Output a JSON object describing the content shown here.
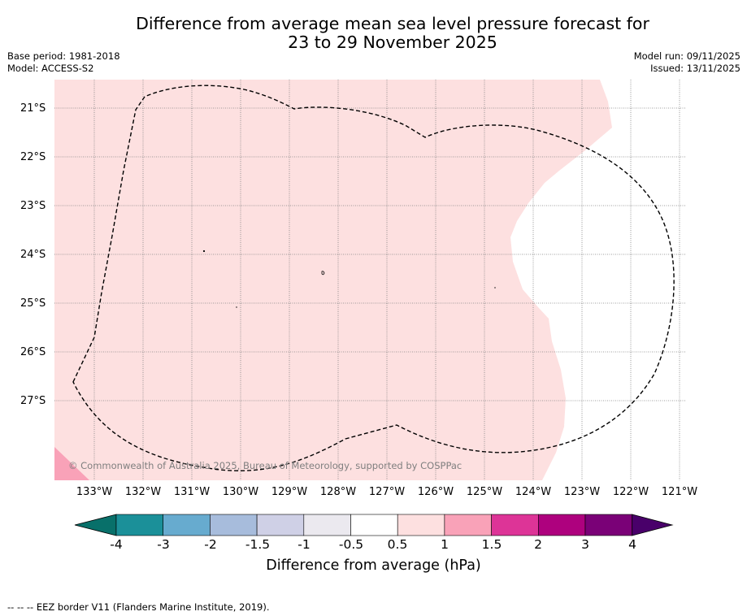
{
  "title": {
    "line1": "Difference from average mean sea level pressure forecast for",
    "line2": "23 to 29 November 2025"
  },
  "meta_left": {
    "base_period": "Base period: 1981-2018",
    "model": "Model: ACCESS-S2"
  },
  "meta_right": {
    "model_run": "Model run: 09/11/2025",
    "issued": "Issued: 13/11/2025"
  },
  "latitude_labels": [
    "21°S",
    "22°S",
    "23°S",
    "24°S",
    "25°S",
    "26°S",
    "27°S"
  ],
  "longitude_labels": [
    "133°W",
    "132°W",
    "131°W",
    "130°W",
    "129°W",
    "128°W",
    "127°W",
    "126°W",
    "125°W",
    "124°W",
    "123°W",
    "122°W",
    "121°W"
  ],
  "copyright": "© Commonwealth of Australia 2025, Bureau of Meteorology, supported by COSPPac",
  "colorbar": {
    "ticks": [
      "-4",
      "-3",
      "-2",
      "-1.5",
      "-1",
      "-0.5",
      "0.5",
      "1",
      "1.5",
      "2",
      "3",
      "4"
    ],
    "colors": [
      "#08706a",
      "#1b9099",
      "#67abcf",
      "#a7bcdc",
      "#cfd0e6",
      "#ebe9ef",
      "#ffffff",
      "#fde0e0",
      "#f9a2b8",
      "#dd3497",
      "#ae017e",
      "#7a0177",
      "#49006a"
    ],
    "label": "Difference from average (hPa)"
  },
  "footer": "--  --  -- EEZ border V11 (Flanders Marine Institute, 2019)."
}
